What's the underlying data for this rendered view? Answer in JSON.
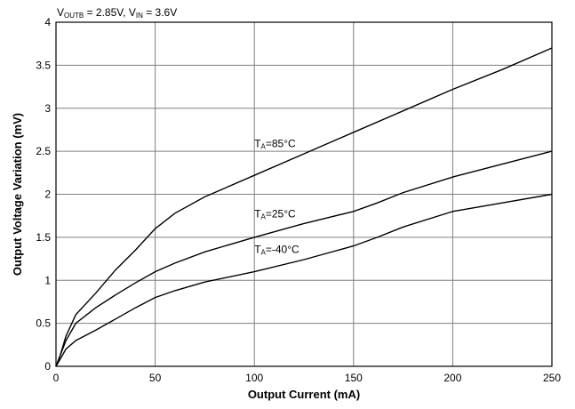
{
  "chart_data": {
    "type": "line",
    "title": {
      "parts": [
        {
          "text": "V",
          "sub": false
        },
        {
          "text": "OUTB",
          "sub": true
        },
        {
          "text": " = 2.85V, V",
          "sub": false
        },
        {
          "text": "IN",
          "sub": true
        },
        {
          "text": " = 3.6V",
          "sub": false
        }
      ]
    },
    "xlabel": "Output Current (mA)",
    "ylabel": "Output Voltage Variation (mV)",
    "xlim": [
      0,
      250
    ],
    "ylim": [
      0,
      4
    ],
    "xticks": [
      0,
      50,
      100,
      150,
      200,
      250
    ],
    "yticks": [
      0,
      0.5,
      1,
      1.5,
      2,
      2.5,
      3,
      3.5,
      4
    ],
    "ytick_labels": [
      "0",
      "0.5",
      "1",
      "1.5",
      "2",
      "2.5",
      "3",
      "3.5",
      "4"
    ],
    "grid": true,
    "series": [
      {
        "label_parts": [
          {
            "text": "T",
            "sub": false
          },
          {
            "text": "A",
            "sub": true
          },
          {
            "text": "=85°C",
            "sub": false
          }
        ],
        "label_at": {
          "x": 100,
          "y": 2.55
        },
        "points": [
          [
            0,
            0
          ],
          [
            2,
            0.12
          ],
          [
            5,
            0.35
          ],
          [
            10,
            0.6
          ],
          [
            20,
            0.85
          ],
          [
            30,
            1.12
          ],
          [
            40,
            1.35
          ],
          [
            50,
            1.6
          ],
          [
            60,
            1.78
          ],
          [
            75,
            1.97
          ],
          [
            100,
            2.22
          ],
          [
            125,
            2.47
          ],
          [
            150,
            2.72
          ],
          [
            175,
            2.97
          ],
          [
            200,
            3.22
          ],
          [
            225,
            3.45
          ],
          [
            250,
            3.7
          ]
        ]
      },
      {
        "label_parts": [
          {
            "text": "T",
            "sub": false
          },
          {
            "text": "A",
            "sub": true
          },
          {
            "text": "=25°C",
            "sub": false
          }
        ],
        "label_at": {
          "x": 100,
          "y": 1.73
        },
        "points": [
          [
            0,
            0
          ],
          [
            2,
            0.12
          ],
          [
            5,
            0.3
          ],
          [
            10,
            0.5
          ],
          [
            20,
            0.68
          ],
          [
            30,
            0.83
          ],
          [
            40,
            0.97
          ],
          [
            50,
            1.1
          ],
          [
            60,
            1.2
          ],
          [
            75,
            1.33
          ],
          [
            100,
            1.5
          ],
          [
            125,
            1.66
          ],
          [
            150,
            1.8
          ],
          [
            162,
            1.9
          ],
          [
            175,
            2.02
          ],
          [
            200,
            2.2
          ],
          [
            225,
            2.35
          ],
          [
            250,
            2.5
          ]
        ]
      },
      {
        "label_parts": [
          {
            "text": "T",
            "sub": false
          },
          {
            "text": "A",
            "sub": true
          },
          {
            "text": "=-40°C",
            "sub": false
          }
        ],
        "label_at": {
          "x": 100,
          "y": 1.32
        },
        "points": [
          [
            0,
            0
          ],
          [
            2,
            0.08
          ],
          [
            5,
            0.2
          ],
          [
            10,
            0.3
          ],
          [
            20,
            0.42
          ],
          [
            30,
            0.55
          ],
          [
            40,
            0.68
          ],
          [
            50,
            0.8
          ],
          [
            60,
            0.88
          ],
          [
            75,
            0.98
          ],
          [
            100,
            1.1
          ],
          [
            125,
            1.24
          ],
          [
            150,
            1.4
          ],
          [
            162,
            1.5
          ],
          [
            175,
            1.62
          ],
          [
            200,
            1.8
          ],
          [
            225,
            1.9
          ],
          [
            250,
            2.0
          ]
        ]
      }
    ]
  }
}
